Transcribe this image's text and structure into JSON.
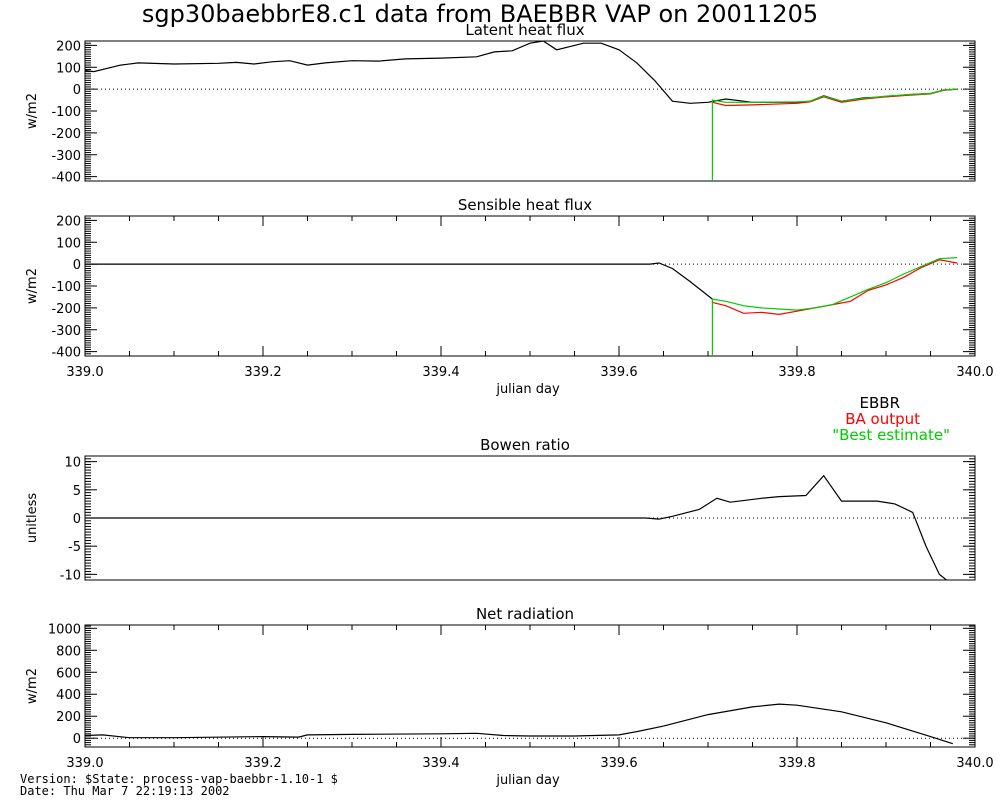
{
  "title": "sgp30baebbrE8.c1 data from BAEBBR VAP on 20011205",
  "legend": {
    "items": [
      {
        "label": "EBBR",
        "color": "#000000"
      },
      {
        "label": "BA output",
        "color": "#ff0000"
      },
      {
        "label": "\"Best estimate\"",
        "color": "#00cc00"
      }
    ]
  },
  "footer": {
    "version": "Version: $State: process-vap-baebbr-1.10-1 $",
    "date": "Date: Thu Mar  7 22:19:13 2002"
  },
  "chart_data": [
    {
      "type": "line",
      "title": "Latent heat flux",
      "ylabel": "w/m2",
      "xlabel": "",
      "xlim": [
        339.0,
        340.0
      ],
      "ylim": [
        -420,
        220
      ],
      "yticks": [
        200,
        100,
        0,
        -100,
        -200,
        -300,
        -400
      ],
      "xticks": [],
      "zero_line": true,
      "series": [
        {
          "name": "EBBR",
          "color": "#000000",
          "x": [
            339.0,
            339.01,
            339.04,
            339.06,
            339.1,
            339.15,
            339.17,
            339.19,
            339.21,
            339.23,
            339.25,
            339.27,
            339.3,
            339.33,
            339.36,
            339.4,
            339.44,
            339.46,
            339.48,
            339.5,
            339.515,
            339.53,
            339.56,
            339.58,
            339.6,
            339.62,
            339.64,
            339.66,
            339.68,
            339.7,
            339.72,
            339.75,
            339.8,
            339.815,
            339.83,
            339.85,
            339.875,
            339.9,
            339.925,
            339.95,
            339.965,
            339.98
          ],
          "y": [
            85,
            80,
            110,
            120,
            115,
            118,
            122,
            115,
            125,
            130,
            110,
            120,
            130,
            128,
            138,
            142,
            148,
            170,
            175,
            210,
            220,
            180,
            210,
            210,
            180,
            120,
            40,
            -55,
            -65,
            -60,
            -45,
            -60,
            -60,
            -55,
            -30,
            -55,
            -40,
            -35,
            -25,
            -20,
            -5,
            0
          ]
        },
        {
          "name": "BA output",
          "color": "#ff0000",
          "x": [
            339.705,
            339.72,
            339.75,
            339.8,
            339.815,
            339.83,
            339.85,
            339.875,
            339.9,
            339.925,
            339.95,
            339.965,
            339.98
          ],
          "y": [
            -60,
            -75,
            -72,
            -65,
            -58,
            -35,
            -60,
            -45,
            -35,
            -28,
            -22,
            -5,
            0
          ]
        },
        {
          "name": "\"Best estimate\"",
          "color": "#00cc00",
          "x": [
            339.705,
            339.705,
            339.72,
            339.75,
            339.8,
            339.815,
            339.83,
            339.85,
            339.875,
            339.9,
            339.925,
            339.95,
            339.965,
            339.98
          ],
          "y": [
            -420,
            -50,
            -60,
            -60,
            -58,
            -55,
            -32,
            -55,
            -42,
            -32,
            -25,
            -20,
            -3,
            0
          ]
        }
      ]
    },
    {
      "type": "line",
      "title": "Sensible heat flux",
      "ylabel": "w/m2",
      "xlabel": "julian day",
      "xlim": [
        339.0,
        340.0
      ],
      "ylim": [
        -420,
        220
      ],
      "yticks": [
        200,
        100,
        0,
        -100,
        -200,
        -300,
        -400
      ],
      "xticks": [
        339.0,
        339.2,
        339.4,
        339.6,
        339.8,
        340.0
      ],
      "zero_line": true,
      "series": [
        {
          "name": "EBBR",
          "color": "#000000",
          "x": [
            339.0,
            339.3,
            339.6,
            339.635,
            339.645,
            339.66,
            339.68,
            339.705
          ],
          "y": [
            0,
            0,
            0,
            0,
            5,
            -20,
            -80,
            -160
          ]
        },
        {
          "name": "BA output",
          "color": "#ff0000",
          "x": [
            339.705,
            339.72,
            339.74,
            339.76,
            339.78,
            339.8,
            339.82,
            339.84,
            339.86,
            339.88,
            339.9,
            339.92,
            339.94,
            339.96,
            339.98
          ],
          "y": [
            -175,
            -190,
            -225,
            -220,
            -230,
            -215,
            -200,
            -185,
            -170,
            -120,
            -95,
            -60,
            -15,
            20,
            5
          ]
        },
        {
          "name": "\"Best estimate\"",
          "color": "#00cc00",
          "x": [
            339.705,
            339.705,
            339.72,
            339.74,
            339.76,
            339.78,
            339.8,
            339.82,
            339.84,
            339.86,
            339.88,
            339.9,
            339.92,
            339.94,
            339.96,
            339.98
          ],
          "y": [
            -420,
            -160,
            -170,
            -190,
            -200,
            -205,
            -210,
            -200,
            -185,
            -150,
            -115,
            -85,
            -45,
            -10,
            25,
            30
          ]
        }
      ]
    },
    {
      "type": "line",
      "title": "Bowen ratio",
      "ylabel": "unitless",
      "xlabel": "",
      "xlim": [
        339.0,
        340.0
      ],
      "ylim": [
        -11,
        11
      ],
      "yticks": [
        10,
        5,
        0,
        -5,
        -10
      ],
      "xticks": [],
      "zero_line": true,
      "series": [
        {
          "name": "EBBR",
          "color": "#000000",
          "x": [
            339.0,
            339.63,
            339.645,
            339.66,
            339.69,
            339.71,
            339.725,
            339.76,
            339.78,
            339.81,
            339.83,
            339.85,
            339.89,
            339.91,
            339.93,
            339.945,
            339.96,
            339.968
          ],
          "y": [
            0,
            0,
            -0.2,
            0.3,
            1.5,
            3.5,
            2.8,
            3.5,
            3.8,
            4.0,
            7.5,
            3.0,
            3.0,
            2.5,
            1.0,
            -5,
            -10,
            -11
          ]
        }
      ]
    },
    {
      "type": "line",
      "title": "Net radiation",
      "ylabel": "w/m2",
      "xlabel": "julian day",
      "xlim": [
        339.0,
        340.0
      ],
      "ylim": [
        -80,
        1030
      ],
      "yticks": [
        1000,
        800,
        600,
        400,
        200,
        0
      ],
      "xticks": [
        339.0,
        339.2,
        339.4,
        339.6,
        339.8,
        340.0
      ],
      "zero_line": true,
      "series": [
        {
          "name": "EBBR",
          "color": "#000000",
          "x": [
            339.0,
            339.02,
            339.05,
            339.1,
            339.2,
            339.24,
            339.25,
            339.3,
            339.4,
            339.44,
            339.47,
            339.5,
            339.55,
            339.6,
            339.62,
            339.65,
            339.7,
            339.75,
            339.78,
            339.8,
            339.85,
            339.9,
            339.95,
            339.975
          ],
          "y": [
            25,
            30,
            5,
            5,
            15,
            10,
            30,
            35,
            40,
            45,
            25,
            20,
            20,
            30,
            60,
            110,
            215,
            285,
            310,
            300,
            240,
            140,
            15,
            -50
          ]
        }
      ]
    }
  ]
}
